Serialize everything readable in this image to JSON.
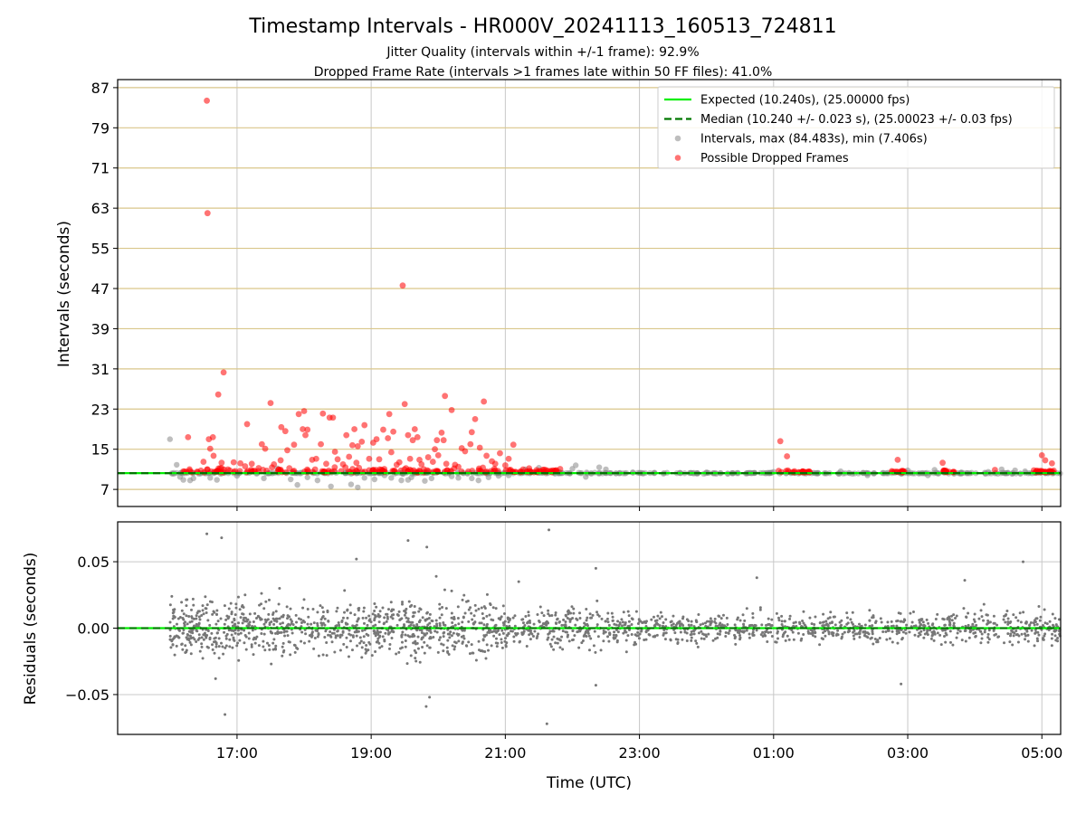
{
  "header": {
    "title": "Timestamp Intervals - HR000V_20241113_160513_724811",
    "subtitle_1": "Jitter Quality (intervals within +/-1 frame): 92.9%",
    "subtitle_2": "Dropped Frame Rate (intervals >1 frames late within 50 FF files): 41.0%"
  },
  "chart_data": [
    {
      "type": "scatter",
      "ylabel": "Intervals (seconds)",
      "xlabel": "",
      "x_unit": "hours since 16:00 UTC on 2024-11-13",
      "xlim": [
        -0.78,
        13.28
      ],
      "ylim": [
        3.6,
        88.6
      ],
      "yticks": [
        7,
        15,
        23,
        31,
        39,
        47,
        55,
        63,
        71,
        79,
        87
      ],
      "grid": true,
      "legend_position": "top-right",
      "expected_value": 10.24,
      "median_value": 10.24,
      "legend": [
        {
          "label": "Expected (10.240s), (25.00000 fps)",
          "kind": "line",
          "color": "#00ee00"
        },
        {
          "label": "Median (10.240 +/- 0.023 s), (25.00023 +/- 0.03 fps)",
          "kind": "dashed-line",
          "color": "#007700"
        },
        {
          "label": "Intervals, max (84.483s), min (7.406s)",
          "kind": "point",
          "color": "#888888"
        },
        {
          "label": "Possible Dropped Frames",
          "kind": "point",
          "color": "#ff0000"
        }
      ],
      "series": [
        {
          "name": "Possible Dropped Frames",
          "color": "#ff0000",
          "points": [
            [
              0.55,
              84.4
            ],
            [
              0.56,
              62.0
            ],
            [
              0.8,
              30.3
            ],
            [
              0.72,
              25.9
            ],
            [
              0.58,
              17.0
            ],
            [
              0.64,
              17.4
            ],
            [
              0.27,
              17.4
            ],
            [
              0.65,
              13.7
            ],
            [
              0.6,
              15.1
            ],
            [
              0.5,
              12.5
            ],
            [
              0.77,
              12.3
            ],
            [
              0.95,
              12.4
            ],
            [
              1.05,
              12.2
            ],
            [
              1.12,
              11.6
            ],
            [
              1.22,
              12.1
            ],
            [
              1.15,
              20.0
            ],
            [
              1.37,
              16.0
            ],
            [
              1.42,
              15.1
            ],
            [
              1.5,
              24.2
            ],
            [
              1.55,
              12.0
            ],
            [
              1.65,
              12.8
            ],
            [
              1.66,
              19.4
            ],
            [
              1.72,
              18.6
            ],
            [
              1.75,
              14.8
            ],
            [
              1.85,
              15.9
            ],
            [
              1.92,
              22.0
            ],
            [
              2.0,
              22.6
            ],
            [
              1.98,
              19.0
            ],
            [
              2.02,
              17.8
            ],
            [
              2.05,
              18.9
            ],
            [
              2.12,
              12.9
            ],
            [
              2.18,
              13.1
            ],
            [
              2.25,
              16.0
            ],
            [
              2.28,
              22.1
            ],
            [
              2.33,
              12.1
            ],
            [
              2.38,
              21.3
            ],
            [
              2.43,
              21.3
            ],
            [
              2.46,
              14.5
            ],
            [
              2.5,
              13.0
            ],
            [
              2.58,
              12.0
            ],
            [
              2.63,
              17.8
            ],
            [
              2.67,
              13.5
            ],
            [
              2.72,
              15.8
            ],
            [
              2.75,
              19.0
            ],
            [
              2.78,
              12.3
            ],
            [
              2.8,
              15.6
            ],
            [
              2.86,
              16.5
            ],
            [
              2.9,
              19.8
            ],
            [
              2.97,
              13.1
            ],
            [
              3.03,
              16.3
            ],
            [
              3.08,
              17.0
            ],
            [
              3.12,
              13.0
            ],
            [
              3.18,
              18.9
            ],
            [
              3.25,
              17.2
            ],
            [
              3.27,
              22.0
            ],
            [
              3.3,
              14.4
            ],
            [
              3.33,
              18.5
            ],
            [
              3.38,
              11.9
            ],
            [
              3.42,
              12.4
            ],
            [
              3.5,
              24.0
            ],
            [
              3.55,
              17.8
            ],
            [
              3.58,
              13.1
            ],
            [
              3.62,
              16.8
            ],
            [
              3.65,
              19.0
            ],
            [
              3.69,
              17.4
            ],
            [
              3.72,
              12.9
            ],
            [
              3.75,
              12.0
            ],
            [
              3.85,
              13.4
            ],
            [
              3.92,
              12.5
            ],
            [
              3.95,
              15.0
            ],
            [
              3.98,
              16.8
            ],
            [
              4.0,
              13.8
            ],
            [
              4.05,
              18.3
            ],
            [
              4.08,
              16.8
            ],
            [
              4.1,
              25.6
            ],
            [
              4.12,
              12.1
            ],
            [
              4.2,
              22.8
            ],
            [
              4.3,
              11.5
            ],
            [
              4.35,
              15.2
            ],
            [
              4.4,
              14.6
            ],
            [
              4.48,
              16.0
            ],
            [
              4.5,
              18.4
            ],
            [
              4.55,
              21.0
            ],
            [
              4.62,
              15.3
            ],
            [
              4.68,
              24.5
            ],
            [
              4.72,
              13.7
            ],
            [
              4.8,
              12.6
            ],
            [
              4.85,
              12.1
            ],
            [
              4.92,
              14.2
            ],
            [
              5.05,
              13.1
            ],
            [
              5.12,
              15.9
            ],
            [
              5.0,
              11.8
            ],
            [
              3.47,
              47.6
            ],
            [
              4.25,
              11.9
            ],
            [
              9.1,
              16.6
            ],
            [
              9.2,
              13.6
            ],
            [
              13.05,
              12.8
            ],
            [
              13.0,
              13.8
            ],
            [
              13.15,
              12.2
            ],
            [
              10.85,
              12.9
            ],
            [
              11.52,
              12.3
            ],
            [
              12.3,
              10.9
            ],
            [
              12.88,
              10.8
            ]
          ],
          "bands": [
            [
              0.2,
              5.85,
              180,
              0.4
            ],
            [
              9.05,
              9.55,
              22,
              0.2
            ],
            [
              10.75,
              10.95,
              14,
              0.2
            ],
            [
              11.5,
              11.7,
              14,
              0.2
            ],
            [
              12.85,
              13.2,
              20,
              0.2
            ]
          ]
        },
        {
          "name": "Intervals",
          "color": "#888888",
          "points": [
            [
              0.0,
              17.0
            ],
            [
              0.1,
              11.9
            ],
            [
              0.15,
              9.5
            ],
            [
              0.2,
              8.9
            ],
            [
              0.3,
              8.8
            ],
            [
              0.35,
              9.2
            ],
            [
              0.6,
              9.3
            ],
            [
              0.7,
              8.9
            ],
            [
              1.0,
              9.7
            ],
            [
              1.4,
              9.2
            ],
            [
              1.6,
              11.2
            ],
            [
              1.8,
              9.0
            ],
            [
              1.9,
              7.9
            ],
            [
              2.05,
              9.4
            ],
            [
              2.2,
              8.8
            ],
            [
              2.4,
              7.6
            ],
            [
              2.7,
              8.0
            ],
            [
              2.8,
              7.4
            ],
            [
              2.9,
              9.3
            ],
            [
              3.05,
              9.0
            ],
            [
              3.2,
              9.8
            ],
            [
              3.3,
              9.3
            ],
            [
              3.45,
              8.8
            ],
            [
              3.55,
              8.9
            ],
            [
              3.6,
              9.4
            ],
            [
              3.8,
              8.7
            ],
            [
              3.9,
              9.2
            ],
            [
              4.2,
              9.6
            ],
            [
              4.3,
              9.3
            ],
            [
              4.5,
              9.2
            ],
            [
              4.6,
              8.8
            ],
            [
              4.75,
              9.4
            ],
            [
              4.9,
              9.7
            ],
            [
              5.05,
              9.8
            ],
            [
              5.3,
              11.0
            ],
            [
              5.5,
              11.3
            ],
            [
              5.8,
              10.5
            ],
            [
              6.0,
              11.1
            ],
            [
              6.05,
              11.8
            ],
            [
              6.2,
              9.5
            ],
            [
              6.4,
              11.4
            ],
            [
              6.5,
              11.0
            ],
            [
              6.7,
              10.2
            ],
            [
              6.9,
              10.4
            ],
            [
              7.6,
              10.3
            ],
            [
              8.0,
              10.4
            ],
            [
              8.6,
              10.2
            ],
            [
              9.0,
              10.5
            ],
            [
              9.6,
              10.3
            ],
            [
              10.0,
              10.6
            ],
            [
              10.4,
              9.8
            ],
            [
              11.0,
              10.8
            ],
            [
              11.2,
              10.2
            ],
            [
              11.3,
              9.8
            ],
            [
              11.4,
              10.9
            ],
            [
              11.8,
              10.4
            ],
            [
              12.2,
              10.5
            ],
            [
              12.4,
              11.0
            ],
            [
              12.6,
              10.8
            ],
            [
              12.75,
              10.6
            ],
            [
              13.1,
              10.4
            ]
          ],
          "band": [
            0.0,
            13.3,
            400,
            0.06
          ]
        }
      ]
    },
    {
      "type": "scatter",
      "ylabel": "Residuals (seconds)",
      "xlabel": "Time (UTC)",
      "xlim": [
        -0.78,
        13.28
      ],
      "ylim": [
        -0.08,
        0.08
      ],
      "yticks": [
        -0.05,
        0.0,
        0.05
      ],
      "ytick_labels": [
        "−0.05",
        "0.00",
        "0.05"
      ],
      "xticks": [
        1,
        3,
        5,
        7,
        9,
        11,
        13
      ],
      "xtick_labels": [
        "17:00",
        "19:00",
        "21:00",
        "23:00",
        "01:00",
        "03:00",
        "05:00"
      ],
      "grid": true,
      "zero_line_color": "#00ee00",
      "series": [
        {
          "name": "Residuals",
          "color": "#777777",
          "outliers": [
            [
              0.55,
              0.071
            ],
            [
              0.77,
              0.068
            ],
            [
              0.82,
              -0.065
            ],
            [
              3.55,
              0.066
            ],
            [
              3.83,
              0.061
            ],
            [
              4.52,
              0.0
            ],
            [
              5.65,
              0.074
            ],
            [
              5.62,
              -0.072
            ],
            [
              2.78,
              0.052
            ],
            [
              3.82,
              -0.059
            ],
            [
              3.87,
              -0.052
            ],
            [
              12.72,
              0.05
            ],
            [
              1.12,
              0.025
            ],
            [
              0.68,
              -0.038
            ],
            [
              6.35,
              0.045
            ],
            [
              10.9,
              -0.042
            ],
            [
              6.35,
              -0.043
            ],
            [
              4.2,
              0.028
            ],
            [
              5.2,
              0.035
            ],
            [
              3.97,
              0.039
            ],
            [
              8.75,
              0.038
            ],
            [
              11.85,
              0.036
            ]
          ],
          "segments": [
            [
              0.0,
              1.0,
              220,
              0.016
            ],
            [
              1.0,
              3.2,
              380,
              0.017
            ],
            [
              3.2,
              5.0,
              340,
              0.017
            ],
            [
              5.0,
              7.0,
              300,
              0.012
            ],
            [
              7.0,
              9.5,
              300,
              0.009
            ],
            [
              9.5,
              11.5,
              260,
              0.009
            ],
            [
              11.5,
              13.28,
              240,
              0.01
            ]
          ]
        }
      ]
    }
  ]
}
